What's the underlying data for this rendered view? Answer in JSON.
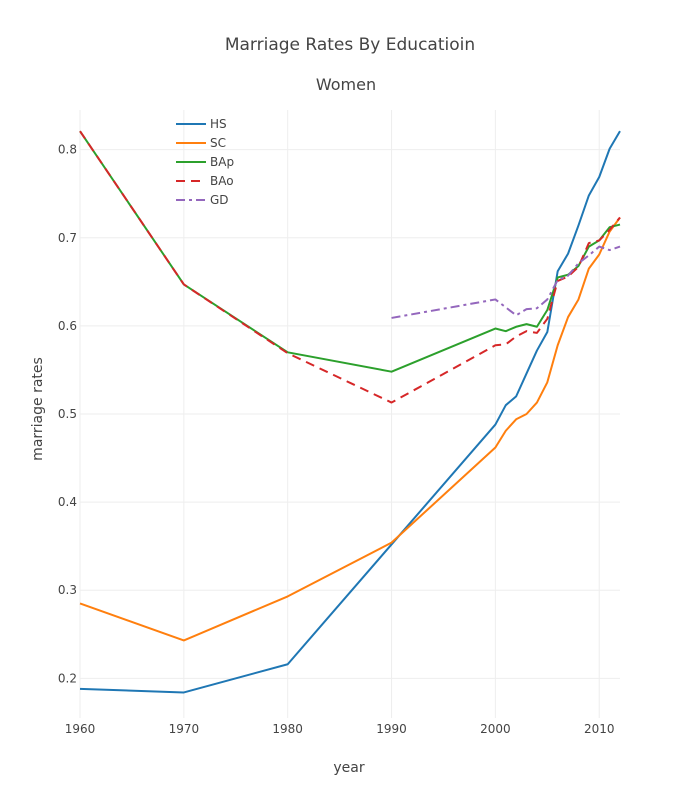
{
  "chart_data": {
    "type": "line",
    "title": "Marriage Rates By Educatioin",
    "subtitle": "Women",
    "xlabel": "year",
    "ylabel": "marriage rates",
    "xlim": [
      1960,
      2012
    ],
    "ylim": [
      0.155,
      0.845
    ],
    "xticks": [
      1960,
      1970,
      1980,
      1990,
      2000,
      2010
    ],
    "yticks": [
      0.2,
      0.3,
      0.4,
      0.5,
      0.6,
      0.7,
      0.8
    ],
    "grid": true,
    "legend_position": "top-left",
    "series": [
      {
        "name": "HS",
        "color": "#1f77b4",
        "dash": "solid",
        "x": [
          1960,
          1970,
          1980,
          1990,
          2000,
          2001,
          2002,
          2003,
          2004,
          2005,
          2006,
          2007,
          2008,
          2009,
          2010,
          2011,
          2012
        ],
        "y": [
          0.188,
          0.184,
          0.216,
          0.352,
          0.488,
          0.51,
          0.52,
          0.546,
          0.572,
          0.593,
          0.662,
          0.682,
          0.714,
          0.748,
          0.769,
          0.801,
          0.821
        ]
      },
      {
        "name": "SC",
        "color": "#ff7f0e",
        "dash": "solid",
        "x": [
          1960,
          1970,
          1980,
          1990,
          2000,
          2001,
          2002,
          2003,
          2004,
          2005,
          2006,
          2007,
          2008,
          2009,
          2010,
          2011,
          2012
        ],
        "y": [
          0.285,
          0.243,
          0.293,
          0.354,
          0.462,
          0.481,
          0.494,
          0.5,
          0.513,
          0.536,
          0.578,
          0.61,
          0.63,
          0.665,
          0.681,
          0.707,
          0.723
        ]
      },
      {
        "name": "BAp",
        "color": "#2ca02c",
        "dash": "solid",
        "x": [
          1960,
          1970,
          1980,
          1990,
          2000,
          2001,
          2002,
          2003,
          2004,
          2005,
          2006,
          2007,
          2008,
          2009,
          2010,
          2011,
          2012
        ],
        "y": [
          0.821,
          0.647,
          0.57,
          0.548,
          0.597,
          0.594,
          0.599,
          0.602,
          0.599,
          0.618,
          0.655,
          0.658,
          0.668,
          0.69,
          0.697,
          0.712,
          0.715
        ]
      },
      {
        "name": "BAo",
        "color": "#d62728",
        "dash": "dash",
        "x": [
          1960,
          1970,
          1980,
          1990,
          2000,
          2001,
          2002,
          2003,
          2004,
          2005,
          2006,
          2007,
          2008,
          2009,
          2010,
          2011,
          2012
        ],
        "y": [
          0.821,
          0.647,
          0.569,
          0.513,
          0.578,
          0.579,
          0.588,
          0.594,
          0.592,
          0.608,
          0.651,
          0.656,
          0.667,
          0.694,
          0.697,
          0.709,
          0.723
        ]
      },
      {
        "name": "GD",
        "color": "#9467bd",
        "dash": "dashdot",
        "x": [
          1990,
          2000,
          2001,
          2002,
          2003,
          2004,
          2005,
          2006,
          2007,
          2008,
          2009,
          2010,
          2011,
          2012
        ],
        "y": [
          0.609,
          0.63,
          0.621,
          0.612,
          0.619,
          0.62,
          0.63,
          0.652,
          0.657,
          0.671,
          0.68,
          0.69,
          0.686,
          0.69
        ]
      }
    ]
  }
}
